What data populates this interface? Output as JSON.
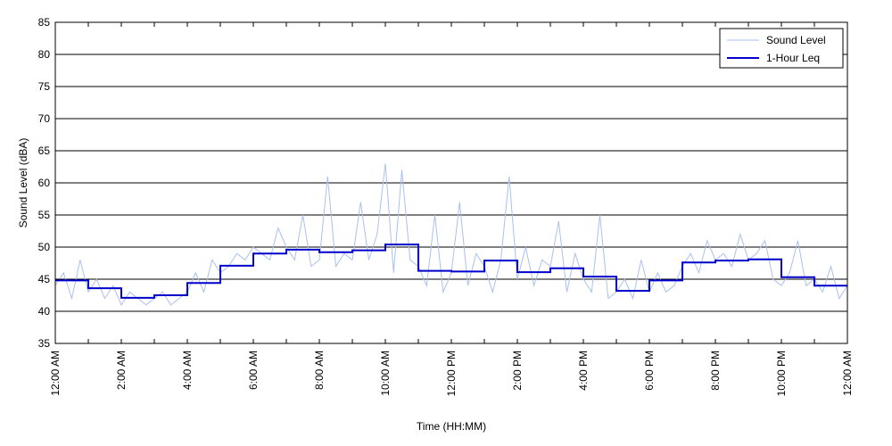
{
  "chart_data": {
    "type": "line",
    "title": "",
    "xlabel": "Time (HH:MM)",
    "ylabel": "Sound Level (dBA)",
    "ylim": [
      35,
      85
    ],
    "yticks": [
      35,
      40,
      45,
      50,
      55,
      60,
      65,
      70,
      75,
      80,
      85
    ],
    "xlim": [
      0,
      24
    ],
    "xticks": [
      0,
      1,
      2,
      3,
      4,
      5,
      6,
      7,
      8,
      9,
      10,
      11,
      12,
      13,
      14,
      15,
      16,
      17,
      18,
      19,
      20,
      21,
      22,
      23,
      24
    ],
    "xtick_labels": [
      "12:00 AM",
      "2:00 AM",
      "4:00 AM",
      "6:00 AM",
      "8:00 AM",
      "10:00 AM",
      "12:00 PM",
      "2:00 PM",
      "4:00 PM",
      "6:00 PM",
      "8:00 PM",
      "10:00 PM",
      "12:00 AM"
    ],
    "xtick_label_hours": [
      0,
      2,
      4,
      6,
      8,
      10,
      12,
      14,
      16,
      18,
      20,
      22,
      24
    ],
    "grid": "horizontal",
    "legend_position": "top-right",
    "series": [
      {
        "name": "Sound Level",
        "color": "#a9c1ee",
        "style": "thin-line",
        "x": [
          0,
          0.25,
          0.5,
          0.75,
          1,
          1.25,
          1.5,
          1.75,
          2,
          2.25,
          2.5,
          2.75,
          3,
          3.25,
          3.5,
          3.75,
          4,
          4.25,
          4.5,
          4.75,
          5,
          5.25,
          5.5,
          5.75,
          6,
          6.25,
          6.5,
          6.75,
          7,
          7.25,
          7.5,
          7.75,
          8,
          8.25,
          8.5,
          8.75,
          9,
          9.25,
          9.5,
          9.75,
          10,
          10.25,
          10.5,
          10.75,
          11,
          11.25,
          11.5,
          11.75,
          12,
          12.25,
          12.5,
          12.75,
          13,
          13.25,
          13.5,
          13.75,
          14,
          14.25,
          14.5,
          14.75,
          15,
          15.25,
          15.5,
          15.75,
          16,
          16.25,
          16.5,
          16.75,
          17,
          17.25,
          17.5,
          17.75,
          18,
          18.25,
          18.5,
          18.75,
          19,
          19.25,
          19.5,
          19.75,
          20,
          20.25,
          20.5,
          20.75,
          21,
          21.25,
          21.5,
          21.75,
          22,
          22.25,
          22.5,
          22.75,
          23,
          23.25,
          23.5,
          23.75,
          24
        ],
        "y": [
          44,
          46,
          42,
          48,
          43,
          45,
          42,
          44,
          41,
          43,
          42,
          41,
          42,
          43,
          41,
          42,
          43,
          46,
          43,
          48,
          46,
          47,
          49,
          48,
          50,
          49,
          48,
          53,
          50,
          48,
          55,
          47,
          48,
          61,
          47,
          49,
          48,
          57,
          48,
          52,
          63,
          46,
          62,
          48,
          47,
          44,
          55,
          43,
          46,
          57,
          44,
          49,
          47,
          43,
          48,
          61,
          45,
          50,
          44,
          48,
          47,
          54,
          43,
          49,
          45,
          43,
          55,
          42,
          43,
          45,
          42,
          48,
          43,
          46,
          43,
          44,
          47,
          49,
          46,
          51,
          48,
          49,
          47,
          52,
          48,
          49,
          51,
          45,
          44,
          46,
          51,
          44,
          45,
          43,
          47,
          42,
          44
        ]
      },
      {
        "name": "1-Hour Leq",
        "color": "#0000cc",
        "style": "step",
        "hour_starts": [
          0,
          1,
          2,
          3,
          4,
          5,
          6,
          7,
          8,
          9,
          10,
          11,
          12,
          13,
          14,
          15,
          16,
          17,
          18,
          19,
          20,
          21,
          22,
          23
        ],
        "values": [
          44.8,
          43.6,
          42.1,
          42.5,
          44.4,
          47.1,
          49.0,
          49.6,
          49.2,
          49.5,
          50.4,
          46.3,
          46.2,
          47.9,
          46.1,
          46.7,
          45.4,
          43.2,
          44.8,
          47.6,
          47.9,
          48.1,
          45.3,
          44.0
        ]
      }
    ]
  }
}
